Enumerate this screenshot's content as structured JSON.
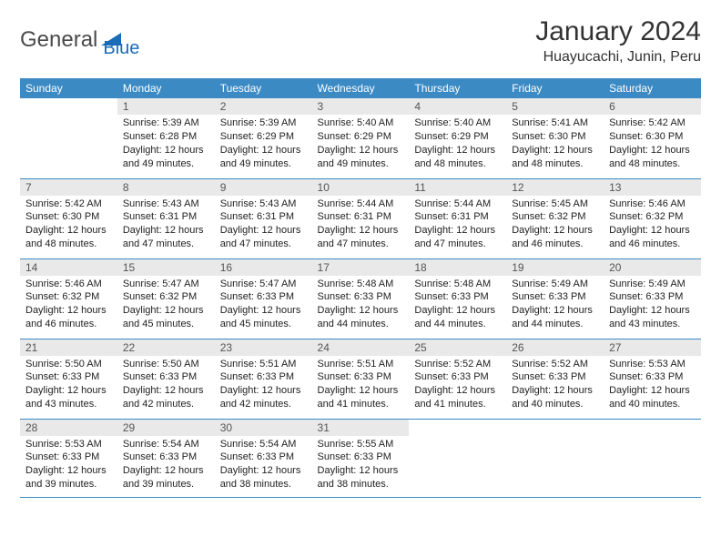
{
  "logo": {
    "text1": "General",
    "text2": "Blue",
    "mark_color": "#1a6bb8"
  },
  "header": {
    "month": "January 2024",
    "location": "Huayucachi, Junin, Peru"
  },
  "colors": {
    "header_bg": "#3b8ac4",
    "header_text": "#ffffff",
    "daynum_bg": "#e9e9e9",
    "row_border": "#3b8ac4",
    "body_text": "#222222"
  },
  "weekdays": [
    "Sunday",
    "Monday",
    "Tuesday",
    "Wednesday",
    "Thursday",
    "Friday",
    "Saturday"
  ],
  "label": {
    "sunrise": "Sunrise:",
    "sunset": "Sunset:",
    "daylight": "Daylight:"
  },
  "weeks": [
    [
      null,
      {
        "n": "1",
        "sr": "5:39 AM",
        "ss": "6:28 PM",
        "dl": "12 hours and 49 minutes."
      },
      {
        "n": "2",
        "sr": "5:39 AM",
        "ss": "6:29 PM",
        "dl": "12 hours and 49 minutes."
      },
      {
        "n": "3",
        "sr": "5:40 AM",
        "ss": "6:29 PM",
        "dl": "12 hours and 49 minutes."
      },
      {
        "n": "4",
        "sr": "5:40 AM",
        "ss": "6:29 PM",
        "dl": "12 hours and 48 minutes."
      },
      {
        "n": "5",
        "sr": "5:41 AM",
        "ss": "6:30 PM",
        "dl": "12 hours and 48 minutes."
      },
      {
        "n": "6",
        "sr": "5:42 AM",
        "ss": "6:30 PM",
        "dl": "12 hours and 48 minutes."
      }
    ],
    [
      {
        "n": "7",
        "sr": "5:42 AM",
        "ss": "6:30 PM",
        "dl": "12 hours and 48 minutes."
      },
      {
        "n": "8",
        "sr": "5:43 AM",
        "ss": "6:31 PM",
        "dl": "12 hours and 47 minutes."
      },
      {
        "n": "9",
        "sr": "5:43 AM",
        "ss": "6:31 PM",
        "dl": "12 hours and 47 minutes."
      },
      {
        "n": "10",
        "sr": "5:44 AM",
        "ss": "6:31 PM",
        "dl": "12 hours and 47 minutes."
      },
      {
        "n": "11",
        "sr": "5:44 AM",
        "ss": "6:31 PM",
        "dl": "12 hours and 47 minutes."
      },
      {
        "n": "12",
        "sr": "5:45 AM",
        "ss": "6:32 PM",
        "dl": "12 hours and 46 minutes."
      },
      {
        "n": "13",
        "sr": "5:46 AM",
        "ss": "6:32 PM",
        "dl": "12 hours and 46 minutes."
      }
    ],
    [
      {
        "n": "14",
        "sr": "5:46 AM",
        "ss": "6:32 PM",
        "dl": "12 hours and 46 minutes."
      },
      {
        "n": "15",
        "sr": "5:47 AM",
        "ss": "6:32 PM",
        "dl": "12 hours and 45 minutes."
      },
      {
        "n": "16",
        "sr": "5:47 AM",
        "ss": "6:33 PM",
        "dl": "12 hours and 45 minutes."
      },
      {
        "n": "17",
        "sr": "5:48 AM",
        "ss": "6:33 PM",
        "dl": "12 hours and 44 minutes."
      },
      {
        "n": "18",
        "sr": "5:48 AM",
        "ss": "6:33 PM",
        "dl": "12 hours and 44 minutes."
      },
      {
        "n": "19",
        "sr": "5:49 AM",
        "ss": "6:33 PM",
        "dl": "12 hours and 44 minutes."
      },
      {
        "n": "20",
        "sr": "5:49 AM",
        "ss": "6:33 PM",
        "dl": "12 hours and 43 minutes."
      }
    ],
    [
      {
        "n": "21",
        "sr": "5:50 AM",
        "ss": "6:33 PM",
        "dl": "12 hours and 43 minutes."
      },
      {
        "n": "22",
        "sr": "5:50 AM",
        "ss": "6:33 PM",
        "dl": "12 hours and 42 minutes."
      },
      {
        "n": "23",
        "sr": "5:51 AM",
        "ss": "6:33 PM",
        "dl": "12 hours and 42 minutes."
      },
      {
        "n": "24",
        "sr": "5:51 AM",
        "ss": "6:33 PM",
        "dl": "12 hours and 41 minutes."
      },
      {
        "n": "25",
        "sr": "5:52 AM",
        "ss": "6:33 PM",
        "dl": "12 hours and 41 minutes."
      },
      {
        "n": "26",
        "sr": "5:52 AM",
        "ss": "6:33 PM",
        "dl": "12 hours and 40 minutes."
      },
      {
        "n": "27",
        "sr": "5:53 AM",
        "ss": "6:33 PM",
        "dl": "12 hours and 40 minutes."
      }
    ],
    [
      {
        "n": "28",
        "sr": "5:53 AM",
        "ss": "6:33 PM",
        "dl": "12 hours and 39 minutes."
      },
      {
        "n": "29",
        "sr": "5:54 AM",
        "ss": "6:33 PM",
        "dl": "12 hours and 39 minutes."
      },
      {
        "n": "30",
        "sr": "5:54 AM",
        "ss": "6:33 PM",
        "dl": "12 hours and 38 minutes."
      },
      {
        "n": "31",
        "sr": "5:55 AM",
        "ss": "6:33 PM",
        "dl": "12 hours and 38 minutes."
      },
      null,
      null,
      null
    ]
  ]
}
